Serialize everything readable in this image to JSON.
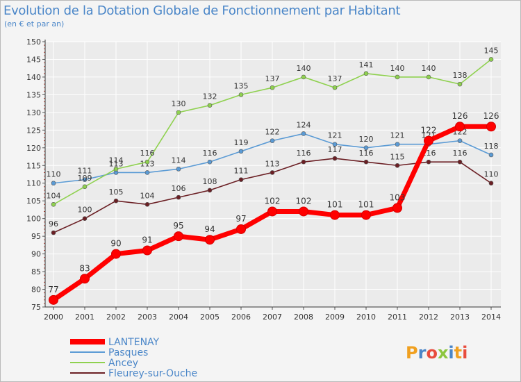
{
  "title": "Evolution de la Dotation Globale de Fonctionnement par Habitant",
  "subtitle": "(en € et par an)",
  "watermark": "Proxiti",
  "colors": {
    "text_blue": "#4a86c8",
    "grid": "#ffffff",
    "plot_bg": "#ebebeb"
  },
  "chart_data": {
    "type": "line",
    "title": "Evolution de la Dotation Globale de Fonctionnement par Habitant",
    "subtitle": "(en € et par an)",
    "xlabel": "",
    "ylabel": "",
    "ylim": [
      75,
      150
    ],
    "ytick_step": 5,
    "grid": true,
    "legend_position": "bottom-left",
    "categories": [
      "2000",
      "2001",
      "2002",
      "2003",
      "2004",
      "2005",
      "2006",
      "2007",
      "2008",
      "2009",
      "2010",
      "2011",
      "2012",
      "2013",
      "2014"
    ],
    "series": [
      {
        "name": "LANTENAY",
        "color": "#ff0000",
        "emphasis": true,
        "values": [
          77,
          83,
          90,
          91,
          95,
          94,
          97,
          102,
          102,
          101,
          101,
          103,
          122,
          126,
          126
        ]
      },
      {
        "name": "Pasques",
        "color": "#5b9bd5",
        "values": [
          110,
          111,
          113,
          113,
          114,
          116,
          119,
          122,
          124,
          121,
          120,
          121,
          121,
          122,
          118
        ]
      },
      {
        "name": "Ancey",
        "color": "#8fd14f",
        "values": [
          104,
          109,
          114,
          116,
          130,
          132,
          135,
          137,
          140,
          137,
          141,
          140,
          140,
          138,
          145
        ]
      },
      {
        "name": "Fleurey-sur-Ouche",
        "color": "#6b1f24",
        "values": [
          96,
          100,
          105,
          104,
          106,
          108,
          111,
          113,
          116,
          117,
          116,
          115,
          116,
          116,
          110
        ]
      }
    ]
  }
}
